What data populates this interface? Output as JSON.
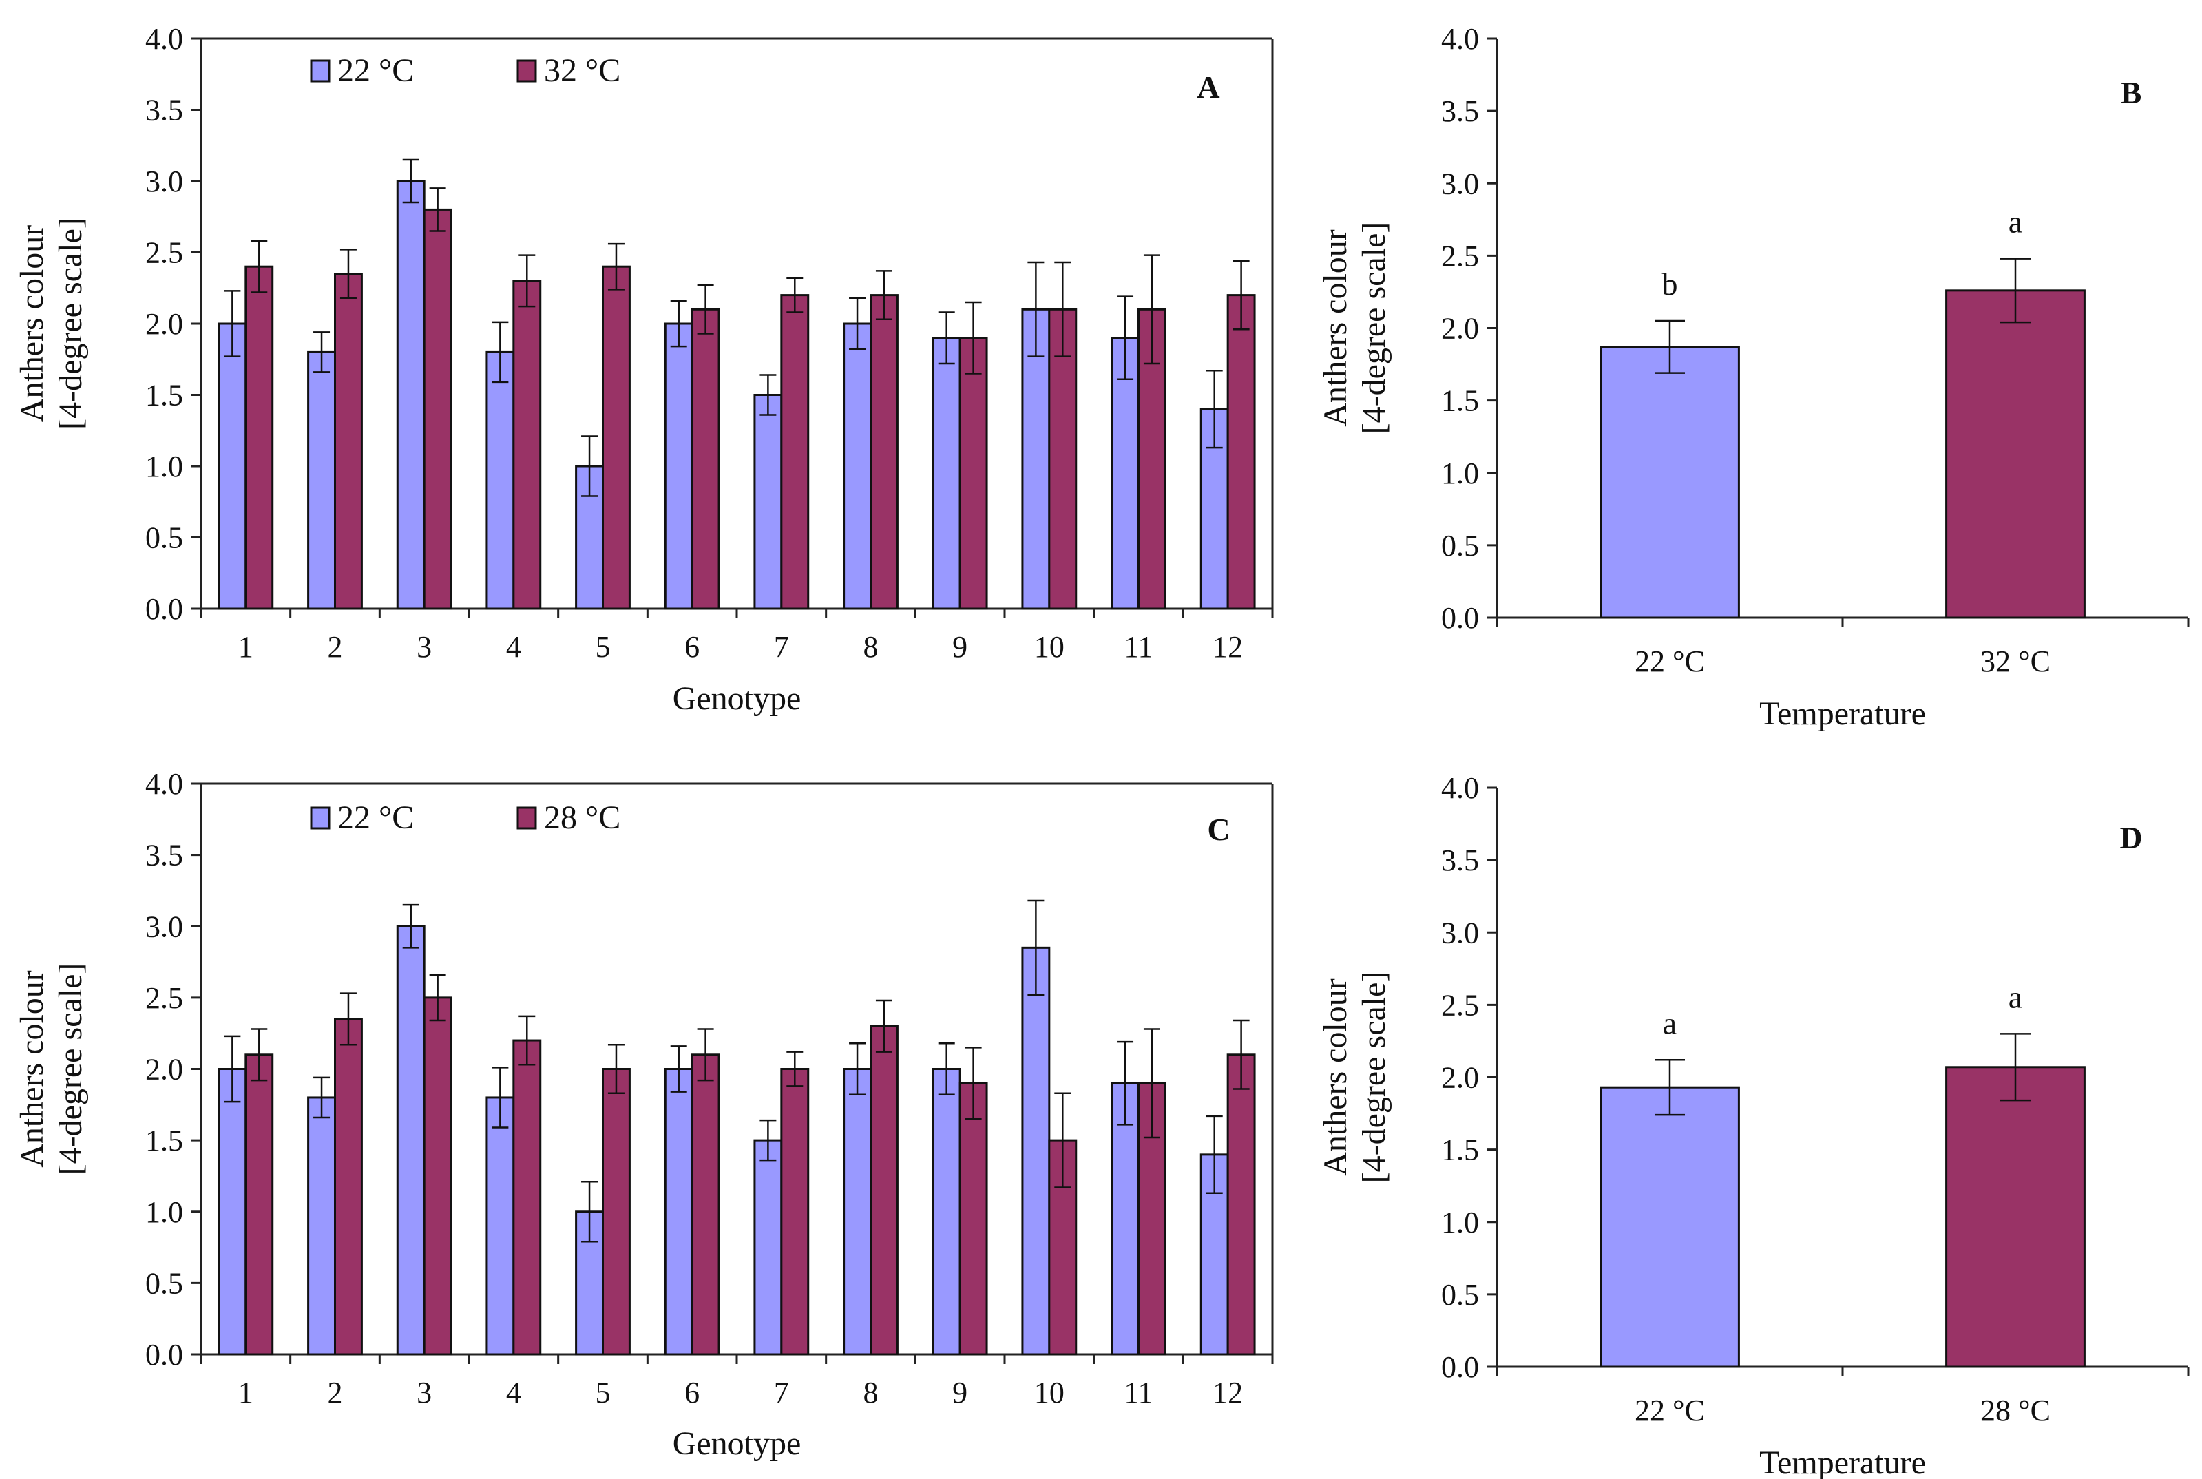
{
  "colors": {
    "low": "#9999FF",
    "high": "#993366",
    "frame": "#222222"
  },
  "chart_data": [
    {
      "panel": "A",
      "type": "bar",
      "xlabel": "Genotype",
      "ylabel_lines": [
        "Anthers colour",
        "[4-degree scale]"
      ],
      "ylim": [
        0,
        4.0
      ],
      "yticks": [
        "0.0",
        "0.5",
        "1.0",
        "1.5",
        "2.0",
        "2.5",
        "3.0",
        "3.5",
        "4.0"
      ],
      "legend_position": "top-left",
      "categories": [
        "1",
        "2",
        "3",
        "4",
        "5",
        "6",
        "7",
        "8",
        "9",
        "10",
        "11",
        "12"
      ],
      "series": [
        {
          "name": "22 °C",
          "color": "#9999FF",
          "values": [
            2.0,
            1.8,
            3.0,
            1.8,
            1.0,
            2.0,
            1.5,
            2.0,
            1.9,
            2.1,
            1.9,
            1.4
          ],
          "errors": [
            0.23,
            0.14,
            0.15,
            0.21,
            0.21,
            0.16,
            0.14,
            0.18,
            0.18,
            0.33,
            0.29,
            0.27
          ]
        },
        {
          "name": "32 °C",
          "color": "#993366",
          "values": [
            2.4,
            2.35,
            2.8,
            2.3,
            2.4,
            2.1,
            2.2,
            2.2,
            1.9,
            2.1,
            2.1,
            2.2
          ],
          "errors": [
            0.18,
            0.17,
            0.15,
            0.18,
            0.16,
            0.17,
            0.12,
            0.17,
            0.25,
            0.33,
            0.38,
            0.24
          ]
        }
      ]
    },
    {
      "panel": "B",
      "type": "bar",
      "xlabel": "Temperature",
      "ylabel_lines": [
        "Anthers colour",
        "[4-degree scale]"
      ],
      "ylim": [
        0,
        4.0
      ],
      "yticks": [
        "0.0",
        "0.5",
        "1.0",
        "1.5",
        "2.0",
        "2.5",
        "3.0",
        "3.5",
        "4.0"
      ],
      "categories": [
        "22 °C",
        "32 °C"
      ],
      "values": [
        1.87,
        2.26
      ],
      "errors": [
        0.18,
        0.22
      ],
      "colors": [
        "#9999FF",
        "#993366"
      ],
      "significance": [
        "b",
        "a"
      ]
    },
    {
      "panel": "C",
      "type": "bar",
      "xlabel": "Genotype",
      "ylabel_lines": [
        "Anthers colour",
        "[4-degree scale]"
      ],
      "ylim": [
        0,
        4.0
      ],
      "yticks": [
        "0.0",
        "0.5",
        "1.0",
        "1.5",
        "2.0",
        "2.5",
        "3.0",
        "3.5",
        "4.0"
      ],
      "legend_position": "top-left",
      "categories": [
        "1",
        "2",
        "3",
        "4",
        "5",
        "6",
        "7",
        "8",
        "9",
        "10",
        "11",
        "12"
      ],
      "series": [
        {
          "name": "22 °C",
          "color": "#9999FF",
          "values": [
            2.0,
            1.8,
            3.0,
            1.8,
            1.0,
            2.0,
            1.5,
            2.0,
            2.0,
            2.85,
            1.9,
            1.4
          ],
          "errors": [
            0.23,
            0.14,
            0.15,
            0.21,
            0.21,
            0.16,
            0.14,
            0.18,
            0.18,
            0.33,
            0.29,
            0.27
          ]
        },
        {
          "name": "28 °C",
          "color": "#993366",
          "values": [
            2.1,
            2.35,
            2.5,
            2.2,
            2.0,
            2.1,
            2.0,
            2.3,
            1.9,
            1.5,
            1.9,
            2.1
          ],
          "errors": [
            0.18,
            0.18,
            0.16,
            0.17,
            0.17,
            0.18,
            0.12,
            0.18,
            0.25,
            0.33,
            0.38,
            0.24
          ]
        }
      ]
    },
    {
      "panel": "D",
      "type": "bar",
      "xlabel": "Temperature",
      "ylabel_lines": [
        "Anthers colour",
        "[4-degree scale]"
      ],
      "ylim": [
        0,
        4.0
      ],
      "yticks": [
        "0.0",
        "0.5",
        "1.0",
        "1.5",
        "2.0",
        "2.5",
        "3.0",
        "3.5",
        "4.0"
      ],
      "categories": [
        "22 °C",
        "28 °C"
      ],
      "values": [
        1.93,
        2.07
      ],
      "errors": [
        0.19,
        0.23
      ],
      "colors": [
        "#9999FF",
        "#993366"
      ],
      "significance": [
        "a",
        "a"
      ]
    }
  ]
}
